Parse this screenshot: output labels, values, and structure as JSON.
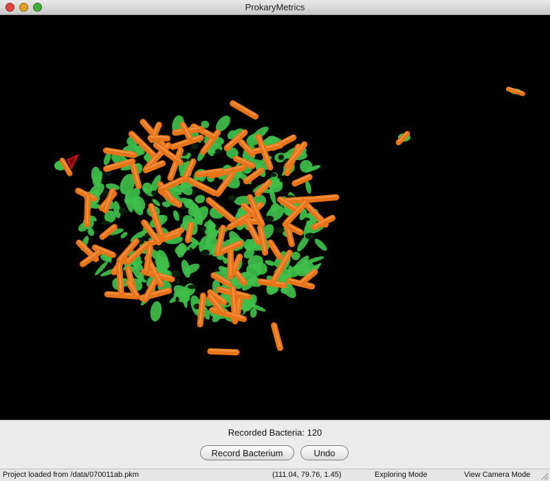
{
  "window": {
    "title": "ProkaryMetrics",
    "controls": {
      "close_color": "#e0443e",
      "minimize_color": "#dea123",
      "zoom_color": "#3fae3a"
    }
  },
  "viewport": {
    "background": "#000000",
    "biofilm_color": "#3fbf4a",
    "bacterium_color": "#e8741a",
    "marker_color": "#cc1111"
  },
  "panel": {
    "recorded_bacteria_label": "Recorded Bacteria:",
    "recorded_bacteria_count": "120",
    "record_button": "Record Bacterium",
    "undo_button": "Undo"
  },
  "status": {
    "project": "Project loaded from /data/070011ab.pkm",
    "coordinates": "(111.04, 79.76, 1.45)",
    "mode": "Exploring Mode",
    "camera": "View Camera Mode"
  }
}
